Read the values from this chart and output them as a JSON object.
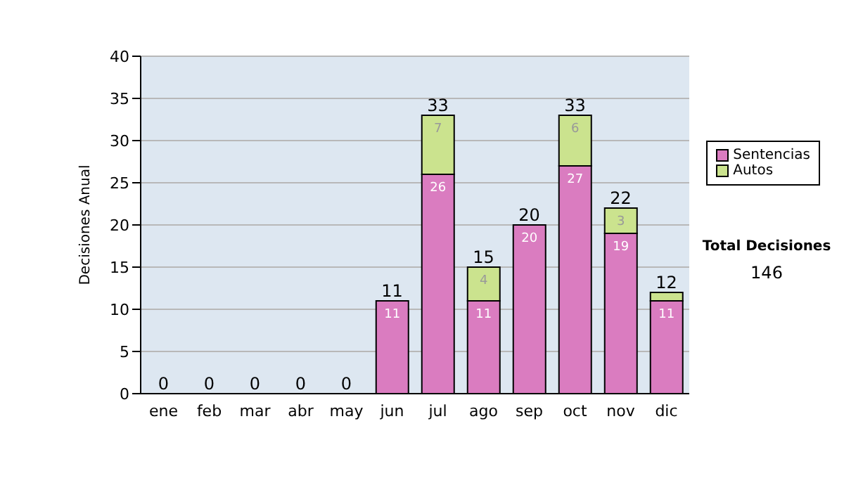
{
  "chart_data": {
    "type": "bar",
    "stacked": true,
    "ylabel": "Decisiones Anual",
    "categories": [
      "ene",
      "feb",
      "mar",
      "abr",
      "may",
      "jun",
      "jul",
      "ago",
      "sep",
      "oct",
      "nov",
      "dic"
    ],
    "series": [
      {
        "name": "Sentencias",
        "color": "#da7cc0",
        "values": [
          0,
          0,
          0,
          0,
          0,
          11,
          26,
          11,
          20,
          27,
          19,
          11
        ],
        "value_labels": [
          null,
          null,
          null,
          null,
          null,
          "11",
          "26",
          "11",
          "20",
          "27",
          "19",
          "11"
        ]
      },
      {
        "name": "Autos",
        "color": "#cbe38e",
        "values": [
          0,
          0,
          0,
          0,
          0,
          0,
          7,
          4,
          0,
          6,
          3,
          1
        ],
        "value_labels": [
          null,
          null,
          null,
          null,
          null,
          null,
          "7",
          "4",
          null,
          "6",
          "3",
          null
        ]
      }
    ],
    "totals": [
      "0",
      "0",
      "0",
      "0",
      "0",
      "11",
      "33",
      "15",
      "20",
      "33",
      "22",
      "12"
    ],
    "ylim": [
      0,
      40
    ],
    "yticks": [
      0,
      5,
      10,
      15,
      20,
      25,
      30,
      35,
      40
    ],
    "grid": "y",
    "legend": "right",
    "annotations": [
      "Total Decisiones",
      "146"
    ]
  }
}
